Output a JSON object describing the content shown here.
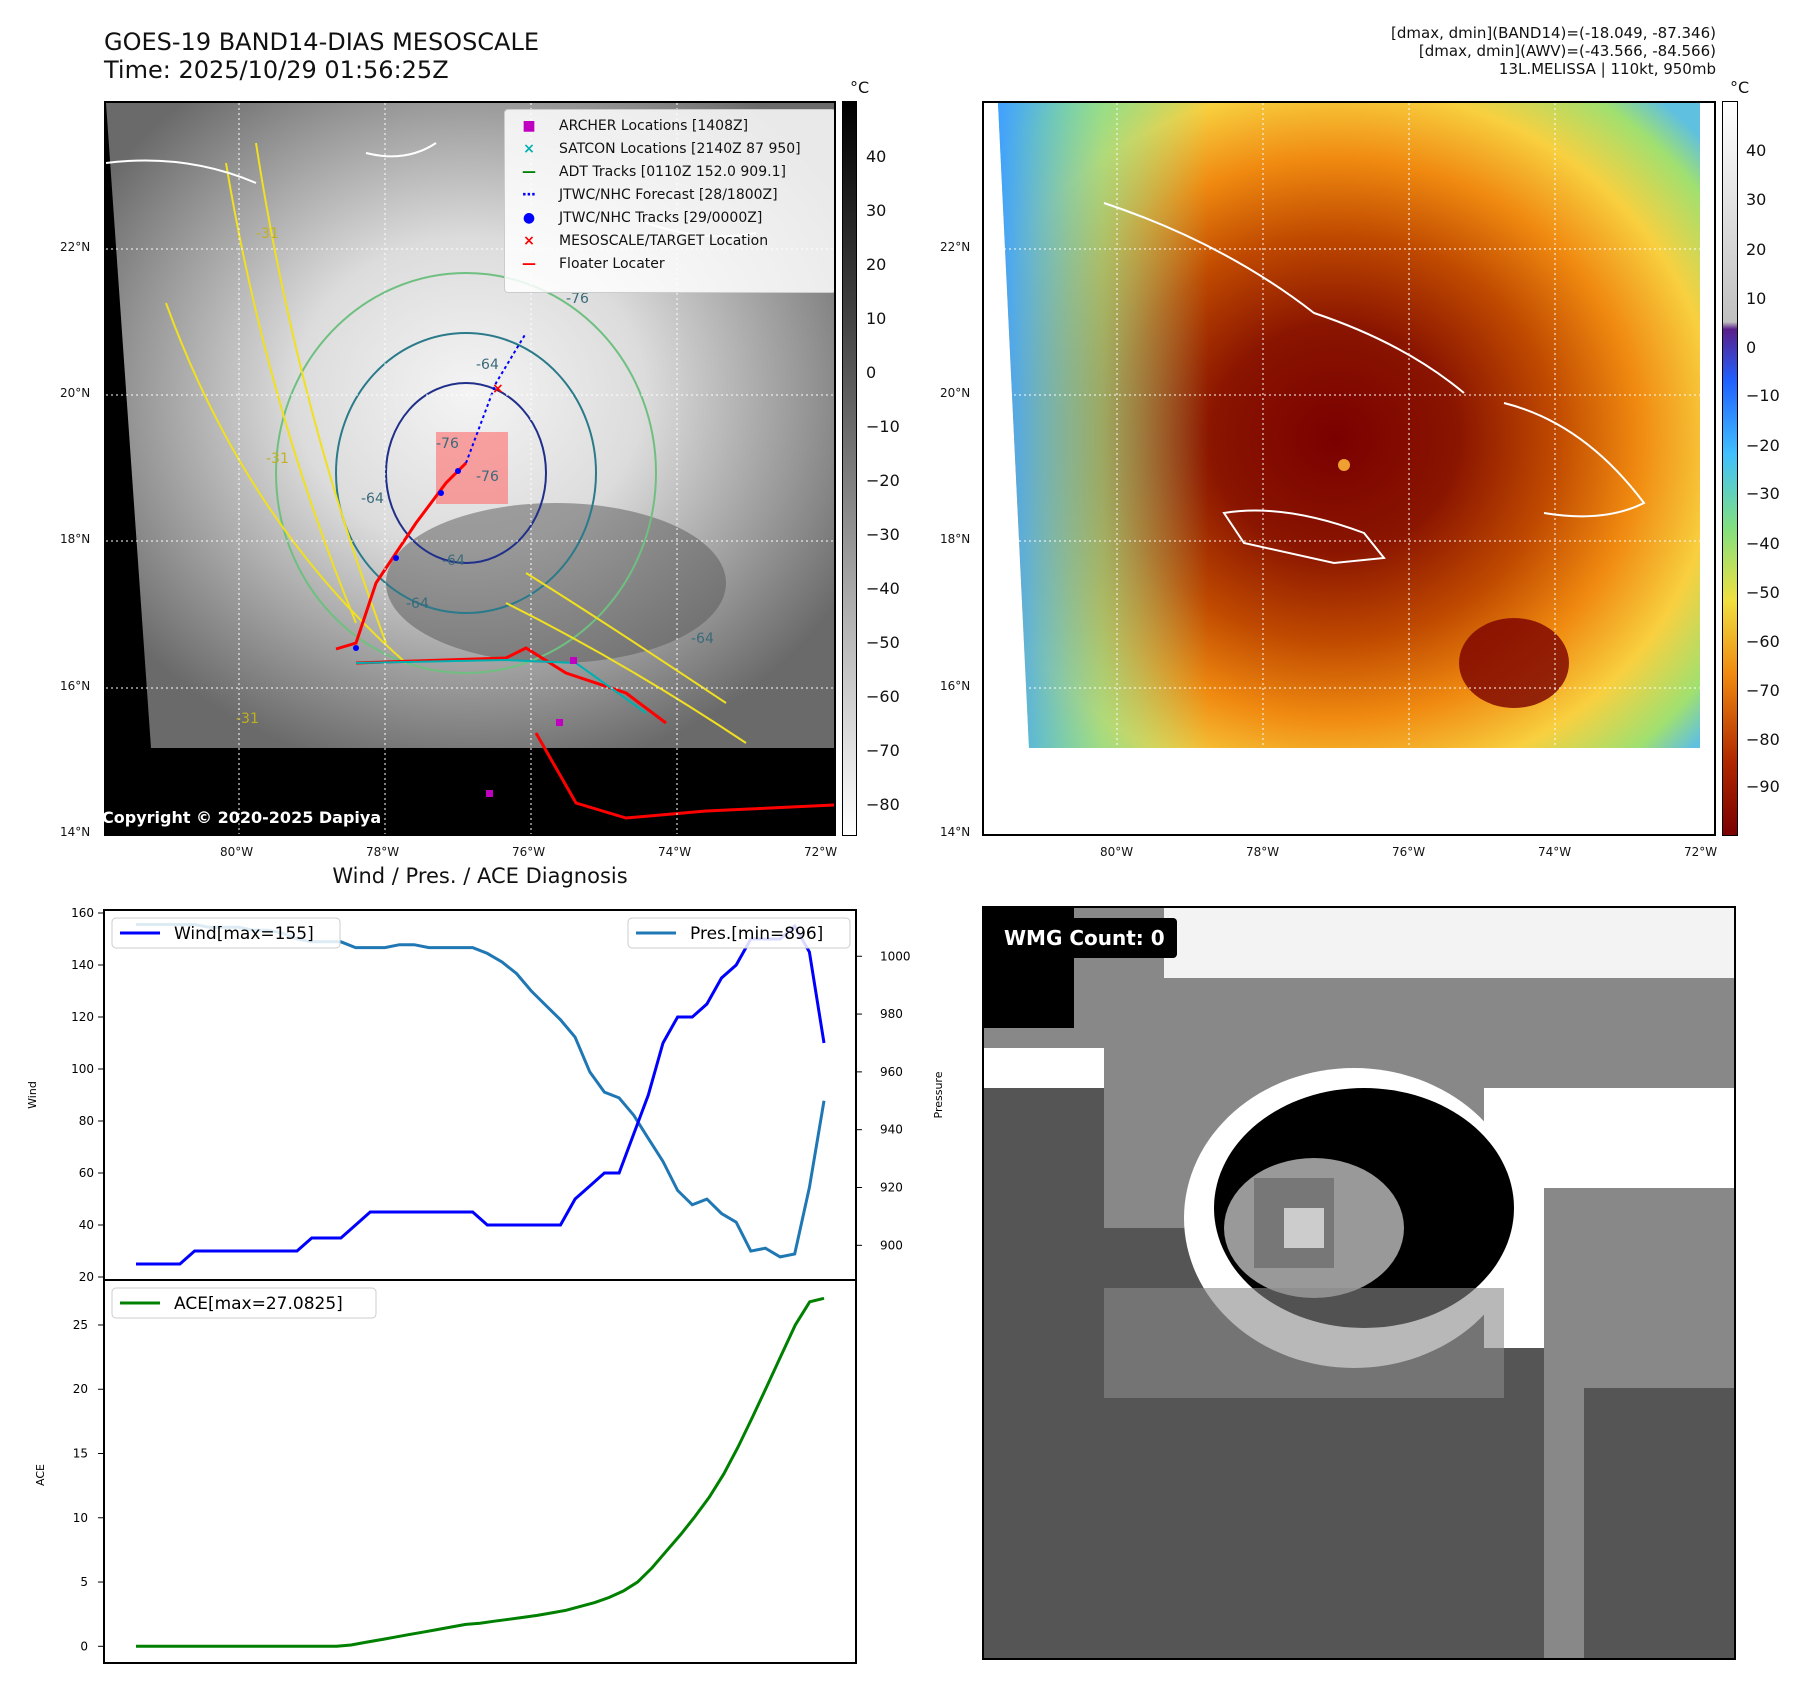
{
  "header": {
    "title_line1": "GOES-19 BAND14-DIAS MESOSCALE",
    "title_line2": "Time: 2025/10/29 01:56:25Z",
    "stats_line1": "[dmax, dmin](BAND14)=(-18.049, -87.346)",
    "stats_line2": "[dmax, dmin](AWV)=(-43.566, -84.566)",
    "stats_line3": "13L.MELISSA | 110kt, 950mb"
  },
  "maps": {
    "lat_labels": [
      "22°N",
      "20°N",
      "18°N",
      "16°N",
      "14°N"
    ],
    "lon_labels": [
      "80°W",
      "78°W",
      "76°W",
      "74°W",
      "72°W"
    ],
    "copyright": "Copyright © 2020-2025 Dapiya",
    "unit_left": "°C",
    "unit_right": "°C",
    "left_colorbar_ticks": [
      "40",
      "30",
      "20",
      "10",
      "0",
      "−10",
      "−20",
      "−30",
      "−40",
      "−50",
      "−60",
      "−70",
      "−80"
    ],
    "right_colorbar_ticks": [
      "40",
      "30",
      "20",
      "10",
      "0",
      "−10",
      "−20",
      "−30",
      "−40",
      "−50",
      "−60",
      "−70",
      "−80",
      "−90"
    ],
    "contour_labels": [
      "-64",
      "-64",
      "-76",
      "-76",
      "-64",
      "-64",
      "-31",
      "-31",
      "-31",
      "-64",
      "-76"
    ]
  },
  "legend": [
    {
      "symbol": "■",
      "color": "#c000c0",
      "label": "ARCHER Locations [1408Z]"
    },
    {
      "symbol": "×",
      "color": "#00b0b0",
      "label": "SATCON Locations [2140Z 87 950]"
    },
    {
      "symbol": "—",
      "color": "#008000",
      "label": "ADT Tracks [0110Z 152.0 909.1]"
    },
    {
      "symbol": "⋯",
      "color": "#0000ff",
      "label": "JTWC/NHC Forecast [28/1800Z]"
    },
    {
      "symbol": "●",
      "color": "#0000ff",
      "label": "JTWC/NHC Tracks [29/0000Z]"
    },
    {
      "symbol": "×",
      "color": "#ff0000",
      "label": "MESOSCALE/TARGET Location"
    },
    {
      "symbol": "—",
      "color": "#ff0000",
      "label": "Floater Locater"
    }
  ],
  "wmg": {
    "label": "WMG Count: 0"
  },
  "chart_data": [
    {
      "type": "line",
      "title": "Wind / Pres. / ACE Diagnosis",
      "xlabel": "",
      "ylabel": "Wind",
      "y2label": "Pressure",
      "ylim": [
        20,
        160
      ],
      "y2lim": [
        888,
        1016
      ],
      "yticks": [
        20,
        40,
        60,
        80,
        100,
        120,
        140,
        160
      ],
      "y2ticks": [
        900,
        920,
        940,
        960,
        980,
        1000
      ],
      "series": [
        {
          "name": "Wind[max=155]",
          "color": "#0000ff",
          "axis": "left",
          "values": [
            25,
            25,
            25,
            25,
            30,
            30,
            30,
            30,
            30,
            30,
            30,
            30,
            35,
            35,
            35,
            40,
            45,
            45,
            45,
            45,
            45,
            45,
            45,
            45,
            40,
            40,
            40,
            40,
            40,
            40,
            50,
            55,
            60,
            60,
            75,
            90,
            110,
            120,
            120,
            125,
            135,
            140,
            150,
            150,
            150,
            155,
            145,
            110
          ]
        },
        {
          "name": "Pres.[min=896]",
          "color": "#1f77b4",
          "axis": "right",
          "values": [
            1011,
            1011,
            1011,
            1011,
            1011,
            1010,
            1010,
            1010,
            1009,
            1009,
            1008,
            1006,
            1005,
            1005,
            1005,
            1003,
            1003,
            1003,
            1004,
            1004,
            1003,
            1003,
            1003,
            1003,
            1001,
            998,
            994,
            988,
            983,
            978,
            972,
            960,
            953,
            951,
            945,
            937,
            929,
            919,
            914,
            916,
            911,
            908,
            898,
            899,
            896,
            897,
            920,
            950
          ]
        }
      ],
      "legend_left": "Wind[max=155]",
      "legend_right": "Pres.[min=896]"
    },
    {
      "type": "line",
      "title": "",
      "xlabel": "",
      "ylabel": "ACE",
      "ylim": [
        -1.3,
        28.5
      ],
      "yticks": [
        0,
        5,
        10,
        15,
        20,
        25
      ],
      "series": [
        {
          "name": "ACE[max=27.0825]",
          "color": "#008000",
          "values": [
            0,
            0,
            0,
            0,
            0,
            0,
            0,
            0,
            0,
            0,
            0,
            0,
            0,
            0,
            0,
            0.1,
            0.3,
            0.5,
            0.7,
            0.9,
            1.1,
            1.3,
            1.5,
            1.7,
            1.8,
            1.95,
            2.1,
            2.25,
            2.4,
            2.6,
            2.8,
            3.1,
            3.4,
            3.8,
            4.3,
            5.0,
            6.1,
            7.4,
            8.7,
            10.1,
            11.6,
            13.4,
            15.5,
            17.8,
            20.2,
            22.6,
            25.0,
            26.8,
            27.08
          ]
        }
      ],
      "legend": "ACE[max=27.0825]"
    }
  ]
}
